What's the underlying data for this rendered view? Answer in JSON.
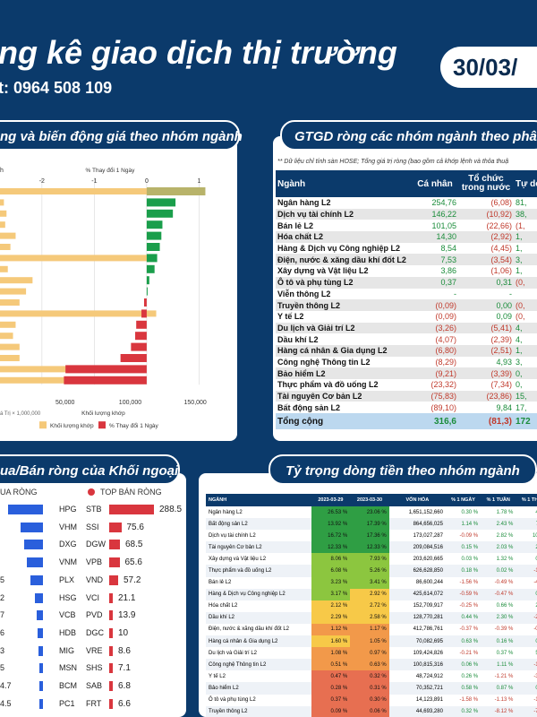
{
  "header": {
    "title": "ng kê giao dịch thị trường",
    "hotline": "t: 0964 508 109",
    "date": "30/03/"
  },
  "sections": {
    "left_top": "ng và biến động giá theo nhóm ngành",
    "right_top": "GTGD ròng các nhóm ngành theo phân l",
    "left_bottom": "ua/Bán ròng của Khối ngoại",
    "right_bottom": "Tỷ trọng dòng tiền theo nhóm ngành"
  },
  "chart_data": {
    "type": "bar",
    "top_axis_label": "% Thay đổi 1 Ngày",
    "top_ticks": [
      "-2",
      "-1",
      "0",
      "1"
    ],
    "bottom_ticks": [
      "50,000",
      "100,000",
      "150,000"
    ],
    "bottom_axis_label": "Khối lượng khớp",
    "unit_note": "á Trị × 1,000,000",
    "legend": [
      "Khối lượng khớp",
      "% Thay đổi 1 Ngày"
    ],
    "corner_label": "h",
    "colors": {
      "volume": "#f5c97a",
      "up": "#1a9e4b",
      "down": "#d9363e",
      "top": "#b8b36a"
    },
    "volume": [
      115000,
      3000,
      5000,
      4000,
      12000,
      8000,
      118000,
      6000,
      25000,
      20000,
      15000,
      120000,
      12000,
      10000,
      15000,
      15000,
      68000,
      68000
    ],
    "pct_change": [
      1.12,
      0.55,
      0.5,
      0.3,
      0.28,
      0.25,
      0.2,
      0.15,
      0.05,
      0.0,
      -0.05,
      -0.1,
      -0.2,
      -0.22,
      -0.3,
      -0.5,
      -1.55,
      -1.58
    ]
  },
  "flow_table": {
    "note": "** Dữ liệu chỉ tính sàn HOSE; Tổng giá trị ròng (bao gồm cả khớp lệnh và thỏa thuậ",
    "headers": [
      "Ngành",
      "Cá nhân",
      "Tổ chức trong nước",
      "Tự doa"
    ],
    "rows": [
      {
        "name": "Ngân hàng L2",
        "a": "254,76",
        "b": "(6,08)",
        "c": "81,"
      },
      {
        "name": "Dịch vụ tài chính L2",
        "a": "146,22",
        "b": "(10,92)",
        "c": "38,"
      },
      {
        "name": "Bán lẻ L2",
        "a": "101,05",
        "b": "(22,66)",
        "c": "(1,"
      },
      {
        "name": "Hóa chất L2",
        "a": "14,30",
        "b": "(2,92)",
        "c": "1,"
      },
      {
        "name": "Hàng & Dịch vụ Công nghiệp L2",
        "a": "8,54",
        "b": "(4,45)",
        "c": "1,"
      },
      {
        "name": "Điện, nước & xăng dầu khí đốt L2",
        "a": "7,53",
        "b": "(3,54)",
        "c": "3,"
      },
      {
        "name": "Xây dựng và Vật liệu L2",
        "a": "3,86",
        "b": "(1,06)",
        "c": "1,"
      },
      {
        "name": "Ô tô và phụ tùng L2",
        "a": "0,37",
        "b": "0,31",
        "c": "(0,"
      },
      {
        "name": "Viễn thông L2",
        "a": "-",
        "b": "-",
        "c": ""
      },
      {
        "name": "Truyền thông L2",
        "a": "(0,09)",
        "b": "0,00",
        "c": "(0,"
      },
      {
        "name": "Y tế L2",
        "a": "(0,09)",
        "b": "0,09",
        "c": "(0,"
      },
      {
        "name": "Du lịch và Giải trí L2",
        "a": "(3,26)",
        "b": "(5,41)",
        "c": "4,"
      },
      {
        "name": "Dầu khí L2",
        "a": "(4,07)",
        "b": "(2,39)",
        "c": "4,"
      },
      {
        "name": "Hàng cá nhân & Gia dụng L2",
        "a": "(6,80)",
        "b": "(2,51)",
        "c": "1,"
      },
      {
        "name": "Công nghệ Thông tin L2",
        "a": "(8,29)",
        "b": "4,93",
        "c": "3,"
      },
      {
        "name": "Bảo hiểm L2",
        "a": "(9,21)",
        "b": "(3,39)",
        "c": "0,"
      },
      {
        "name": "Thực phẩm và đồ uống L2",
        "a": "(23,32)",
        "b": "(7,34)",
        "c": "0,"
      },
      {
        "name": "Tài nguyên Cơ bản L2",
        "a": "(75,83)",
        "b": "(23,86)",
        "c": "15,"
      },
      {
        "name": "Bất động sản L2",
        "a": "(89,10)",
        "b": "9,84",
        "c": "17,"
      }
    ],
    "total": {
      "name": "Tổng cộng",
      "a": "316,6",
      "b": "(81,3)",
      "c": "172"
    }
  },
  "foreign": {
    "buy_header": "UA RÒNG",
    "sell_header": "TOP BÁN RÒNG",
    "rows": [
      {
        "bv": "",
        "buy": "HPG",
        "sell": "STB",
        "sv": "288.5",
        "bw": 0.85,
        "sw": 1.0
      },
      {
        "bv": "",
        "buy": "VHM",
        "sell": "SSI",
        "sv": "75.6",
        "bw": 0.55,
        "sw": 0.27
      },
      {
        "bv": "",
        "buy": "DXG",
        "sell": "DGW",
        "sv": "68.5",
        "bw": 0.45,
        "sw": 0.24
      },
      {
        "bv": "",
        "buy": "VNM",
        "sell": "VPB",
        "sv": "65.6",
        "bw": 0.4,
        "sw": 0.23
      },
      {
        "bv": "5",
        "buy": "PLX",
        "sell": "VND",
        "sv": "57.2",
        "bw": 0.3,
        "sw": 0.2
      },
      {
        "bv": "2",
        "buy": "HSG",
        "sell": "VCI",
        "sv": "21.1",
        "bw": 0.2,
        "sw": 0.08
      },
      {
        "bv": "7",
        "buy": "VCB",
        "sell": "PVD",
        "sv": "13.9",
        "bw": 0.15,
        "sw": 0.05
      },
      {
        "bv": "6",
        "buy": "HDB",
        "sell": "DGC",
        "sv": "10",
        "bw": 0.12,
        "sw": 0.04
      },
      {
        "bv": "3",
        "buy": "MIG",
        "sell": "VRE",
        "sv": "8.6",
        "bw": 0.1,
        "sw": 0.03
      },
      {
        "bv": "5",
        "buy": "MSN",
        "sell": "SHS",
        "sv": "7.1",
        "bw": 0.09,
        "sw": 0.025
      },
      {
        "bv": "4.7",
        "buy": "BCM",
        "sell": "SAB",
        "sv": "6.8",
        "bw": 0.08,
        "sw": 0.024
      },
      {
        "bv": "4.5",
        "buy": "PC1",
        "sell": "FRT",
        "sv": "6.6",
        "bw": 0.07,
        "sw": 0.023
      }
    ]
  },
  "weight_table": {
    "headers": [
      "NGÀNH",
      "2023-03-29",
      "2023-03-30",
      "VỐN HÓA",
      "% 1 NGÀY",
      "% 1 TUẦN",
      "% 1 THÁNG"
    ],
    "rows": [
      [
        "Ngân hàng L2",
        "26.53 %",
        "23.06 %",
        "1,651,152,660",
        "0.30 %",
        "1.78 %",
        "4.42 %"
      ],
      [
        "Bất động sản L2",
        "13.92 %",
        "17.39 %",
        "864,656,025",
        "1.14 %",
        "2.43 %",
        "7.11 %"
      ],
      [
        "Dịch vụ tài chính L2",
        "16.72 %",
        "17.36 %",
        "173,027,287",
        "-0.09 %",
        "2.82 %",
        "10.70 %"
      ],
      [
        "Tài nguyên Cơ bản L2",
        "12.33 %",
        "12.33 %",
        "209,084,516",
        "0.15 %",
        "2.03 %",
        "2.76 %"
      ],
      [
        "Xây dựng và Vật liệu L2",
        "8.06 %",
        "7.93 %",
        "203,620,665",
        "0.03 %",
        "1.32 %",
        "0.85 %"
      ],
      [
        "Thực phẩm và đồ uống L2",
        "6.08 %",
        "5.26 %",
        "626,628,850",
        "0.18 %",
        "0.02 %",
        "-1.01 %"
      ],
      [
        "Bán lẻ L2",
        "3.23 %",
        "3.41 %",
        "86,600,244",
        "-1.56 %",
        "-0.49 %",
        "-4.56 %"
      ],
      [
        "Hàng & Dịch vụ Công nghiệp L2",
        "3.17 %",
        "2.92 %",
        "425,614,072",
        "-0.59 %",
        "-0.47 %",
        "0.69 %"
      ],
      [
        "Hóa chất L2",
        "2.12 %",
        "2.72 %",
        "152,709,917",
        "-0.25 %",
        "0.66 %",
        "2.24 %"
      ],
      [
        "Dầu khí L2",
        "2.29 %",
        "2.58 %",
        "128,770,281",
        "0.44 %",
        "2.30 %",
        "-2.21 %"
      ],
      [
        "Điện, nước & xăng dầu khí đốt L2",
        "1.12 %",
        "1.17 %",
        "412,786,761",
        "-0.37 %",
        "-0.39 %",
        "-0.55 %"
      ],
      [
        "Hàng cá nhân & Gia dụng L2",
        "1.60 %",
        "1.05 %",
        "70,082,695",
        "0.63 %",
        "0.16 %",
        "0.06 %"
      ],
      [
        "Du lịch và Giải trí L2",
        "1.08 %",
        "0.97 %",
        "109,424,826",
        "-0.21 %",
        "0.37 %",
        "5.84 %"
      ],
      [
        "Công nghệ Thông tin L2",
        "0.51 %",
        "0.63 %",
        "100,815,316",
        "0.06 %",
        "1.11 %",
        "-1.74 %"
      ],
      [
        "Y tế L2",
        "0.47 %",
        "0.32 %",
        "48,724,912",
        "0.26 %",
        "-1.21 %",
        "-3.18 %"
      ],
      [
        "Bảo hiểm L2",
        "0.28 %",
        "0.31 %",
        "70,352,721",
        "0.58 %",
        "0.87 %",
        "0.41 %"
      ],
      [
        "Ô tô và phụ tùng L2",
        "0.37 %",
        "0.30 %",
        "14,123,891",
        "-1.58 %",
        "-1.13 %",
        "-1.83 %"
      ],
      [
        "Truyền thông L2",
        "0.09 %",
        "0.06 %",
        "44,693,280",
        "0.32 %",
        "-8.12 %",
        "-7.57 %"
      ],
      [
        "Viễn thông L2",
        "0.03 %",
        "0.05 %",
        "80,464,229",
        "0.48 %",
        "1.16 %",
        "-0.25 %"
      ]
    ]
  }
}
